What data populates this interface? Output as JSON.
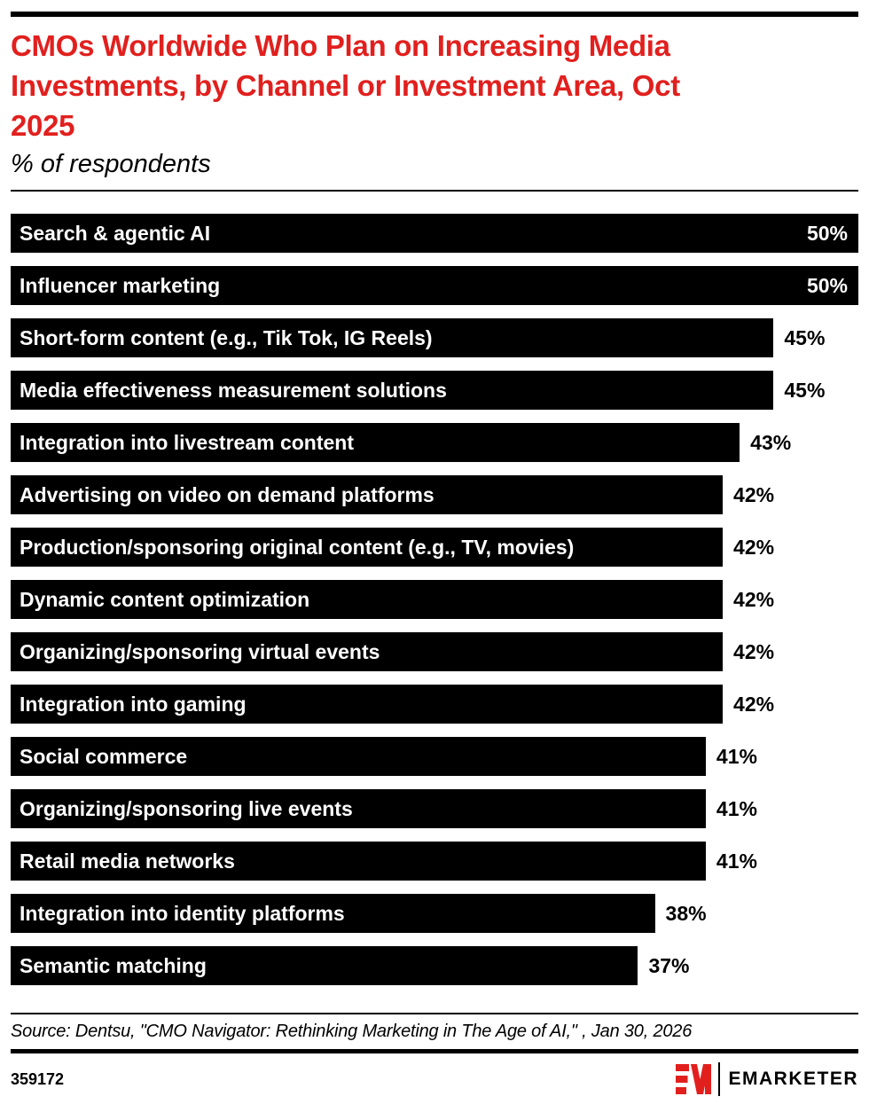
{
  "header": {
    "title": "CMOs Worldwide Who Plan on Increasing Media Investments, by Channel or Investment Area, Oct 2025",
    "title_lines": [
      "CMOs Worldwide Who Plan on Increasing Media",
      "Investments, by Channel or Investment Area, Oct",
      "2025"
    ],
    "subtitle": "% of respondents"
  },
  "chart_data": {
    "type": "bar",
    "orientation": "horizontal",
    "title": "CMOs Worldwide Who Plan on Increasing Media Investments, by Channel or Investment Area, Oct 2025",
    "subtitle": "% of respondents",
    "xlabel": "",
    "ylabel": "",
    "unit": "%",
    "xlim": [
      0,
      50
    ],
    "grid": false,
    "legend": false,
    "bar_color": "#000000",
    "categories": [
      "Search & agentic AI",
      "Influencer marketing",
      "Short-form content (e.g., Tik Tok, IG Reels)",
      "Media effectiveness measurement solutions",
      "Integration into livestream content",
      "Advertising on video on demand platforms",
      "Production/sponsoring original content (e.g., TV, movies)",
      "Dynamic content optimization",
      "Organizing/sponsoring virtual events",
      "Integration into gaming",
      "Social commerce",
      "Organizing/sponsoring live events",
      "Retail media networks",
      "Integration into identity platforms",
      "Semantic matching"
    ],
    "values": [
      50,
      50,
      45,
      45,
      43,
      42,
      42,
      42,
      42,
      42,
      41,
      41,
      41,
      38,
      37
    ],
    "value_labels": [
      "50%",
      "50%",
      "45%",
      "45%",
      "43%",
      "42%",
      "42%",
      "42%",
      "42%",
      "42%",
      "41%",
      "41%",
      "41%",
      "38%",
      "37%"
    ]
  },
  "footer": {
    "source": "Source: Dentsu, \"CMO Navigator: Rethinking Marketing in The Age of AI,\" , Jan 30, 2026",
    "chart_id": "359172",
    "brand": "EMARKETER"
  },
  "colors": {
    "accent_red": "#e1201e",
    "bar_black": "#000000",
    "background": "#ffffff"
  }
}
